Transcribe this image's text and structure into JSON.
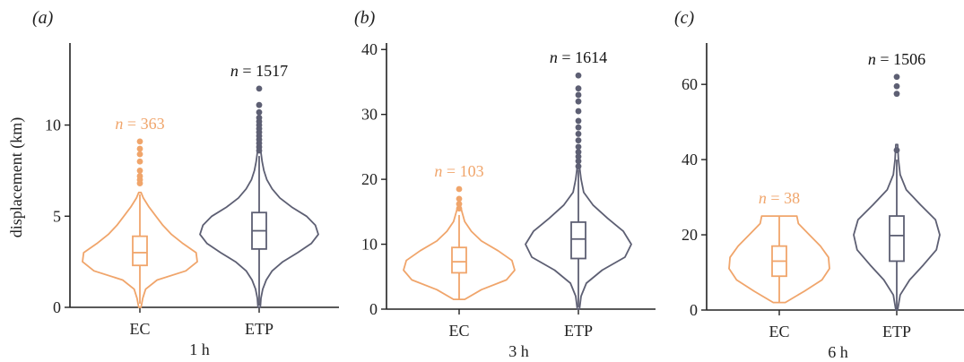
{
  "colors": {
    "ec": "#f0a56b",
    "etp": "#5d5f73",
    "axis": "#222222"
  },
  "figure": {
    "ylabel": "displacement (km)"
  },
  "chart_data": [
    {
      "type": "violin",
      "panel_label": "(a)",
      "xlabel": "1 h",
      "ylabel": "displacement (km)",
      "ylim": [
        0,
        14.5
      ],
      "yticks": [
        0,
        5,
        10
      ],
      "categories": [
        "EC",
        "ETP"
      ],
      "series": [
        {
          "name": "EC",
          "n_label": "n = 363",
          "box": {
            "q1": 2.3,
            "median": 3.0,
            "q3": 3.9,
            "whisker_low": 0.2,
            "whisker_high": 6.2
          },
          "outliers": [
            6.8,
            7.0,
            7.2,
            7.5,
            8.0,
            8.4,
            8.7,
            9.1
          ],
          "violin": {
            "min": 0.0,
            "max": 6.3,
            "ys": [
              0,
              0.5,
              1,
              1.5,
              2,
              2.5,
              3,
              3.5,
              4,
              4.5,
              5,
              5.5,
              6,
              6.3
            ],
            "widths": [
              0.02,
              0.05,
              0.1,
              0.3,
              0.8,
              1.0,
              0.98,
              0.75,
              0.55,
              0.4,
              0.28,
              0.16,
              0.06,
              0.02
            ]
          }
        },
        {
          "name": "ETP",
          "n_label": "n = 1517",
          "box": {
            "q1": 3.2,
            "median": 4.2,
            "q3": 5.2,
            "whisker_low": 0.1,
            "whisker_high": 8.3
          },
          "outliers": [
            8.6,
            8.8,
            9.0,
            9.2,
            9.4,
            9.6,
            9.8,
            10.0,
            10.2,
            10.4,
            10.7,
            11.1,
            12.0
          ],
          "violin": {
            "min": 0.0,
            "max": 8.5,
            "ys": [
              0,
              0.5,
              1,
              1.5,
              2,
              2.5,
              3,
              3.5,
              4,
              4.5,
              5,
              5.5,
              6,
              6.5,
              7,
              7.5,
              8,
              8.5
            ],
            "widths": [
              0.02,
              0.03,
              0.06,
              0.12,
              0.22,
              0.4,
              0.65,
              0.88,
              1.0,
              0.95,
              0.8,
              0.55,
              0.35,
              0.22,
              0.13,
              0.08,
              0.05,
              0.03
            ]
          }
        }
      ]
    },
    {
      "type": "violin",
      "panel_label": "(b)",
      "xlabel": "3 h",
      "ylabel": "",
      "ylim": [
        0,
        41
      ],
      "yticks": [
        0,
        10,
        20,
        30,
        40
      ],
      "categories": [
        "EC",
        "ETP"
      ],
      "series": [
        {
          "name": "EC",
          "n_label": "n = 103",
          "box": {
            "q1": 5.6,
            "median": 7.3,
            "q3": 9.5,
            "whisker_low": 1.5,
            "whisker_high": 14.5
          },
          "outliers": [
            15.5,
            16.2,
            17.0,
            18.5
          ],
          "violin": {
            "min": 1.5,
            "max": 16.0,
            "ys": [
              1.5,
              3,
              4.5,
              6,
              7.5,
              9,
              10.5,
              12,
              13.5,
              15,
              16
            ],
            "widths": [
              0.1,
              0.4,
              0.85,
              1.0,
              0.95,
              0.7,
              0.4,
              0.22,
              0.1,
              0.05,
              0.02
            ]
          }
        },
        {
          "name": "ETP",
          "n_label": "n = 1614",
          "box": {
            "q1": 7.8,
            "median": 10.8,
            "q3": 13.4,
            "whisker_low": 0.3,
            "whisker_high": 21.5
          },
          "outliers": [
            22.0,
            22.8,
            23.5,
            24.2,
            25.0,
            26.0,
            27.0,
            28.0,
            29.0,
            30.5,
            32.0,
            33.0,
            34.0,
            36.0
          ],
          "violin": {
            "min": 0.0,
            "max": 22.0,
            "ys": [
              0,
              2,
              4,
              6,
              8,
              10,
              12,
              14,
              16,
              18,
              20,
              22
            ],
            "widths": [
              0.02,
              0.05,
              0.15,
              0.45,
              0.88,
              1.0,
              0.85,
              0.55,
              0.28,
              0.1,
              0.05,
              0.02
            ]
          }
        }
      ]
    },
    {
      "type": "violin",
      "panel_label": "(c)",
      "xlabel": "6 h",
      "ylabel": "",
      "ylim": [
        0,
        71
      ],
      "yticks": [
        0,
        20,
        40,
        60
      ],
      "categories": [
        "EC",
        "ETP"
      ],
      "series": [
        {
          "name": "EC",
          "n_label": "n = 38",
          "box": {
            "q1": 9.0,
            "median": 13.0,
            "q3": 17.0,
            "whisker_low": 2.0,
            "whisker_high": 25.0
          },
          "outliers": [],
          "violin": {
            "min": 2.0,
            "max": 25.0,
            "ys": [
              2,
              5,
              8,
              11,
              14,
              17,
              20,
              23,
              25
            ],
            "widths": [
              0.12,
              0.5,
              0.85,
              1.0,
              0.98,
              0.82,
              0.6,
              0.38,
              0.35
            ]
          }
        },
        {
          "name": "ETP",
          "n_label": "n = 1506",
          "box": {
            "q1": 13.0,
            "median": 19.8,
            "q3": 25.0,
            "whisker_low": 0.2,
            "whisker_high": 40.0
          },
          "outliers": [
            42.5,
            57.5,
            59.5,
            62.0
          ],
          "violin": {
            "min": 0.0,
            "max": 44.0,
            "ys": [
              0,
              4,
              8,
              12,
              16,
              20,
              24,
              28,
              32,
              36,
              40,
              44
            ],
            "widths": [
              0.02,
              0.08,
              0.3,
              0.62,
              0.92,
              1.0,
              0.9,
              0.55,
              0.22,
              0.08,
              0.04,
              0.02
            ]
          }
        }
      ]
    }
  ]
}
